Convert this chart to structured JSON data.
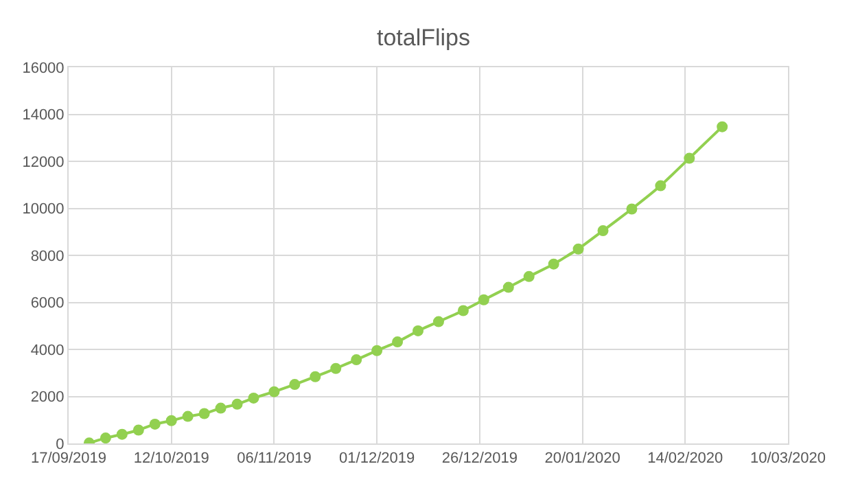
{
  "chart_data": {
    "type": "line",
    "title": "totalFlips",
    "x": [
      "2019-09-22",
      "2019-09-26",
      "2019-09-30",
      "2019-10-04",
      "2019-10-08",
      "2019-10-12",
      "2019-10-16",
      "2019-10-20",
      "2019-10-24",
      "2019-10-28",
      "2019-11-01",
      "2019-11-06",
      "2019-11-11",
      "2019-11-16",
      "2019-11-21",
      "2019-11-26",
      "2019-12-01",
      "2019-12-06",
      "2019-12-11",
      "2019-12-16",
      "2019-12-22",
      "2019-12-27",
      "2020-01-02",
      "2020-01-07",
      "2020-01-13",
      "2020-01-19",
      "2020-01-25",
      "2020-02-01",
      "2020-02-08",
      "2020-02-15",
      "2020-02-23"
    ],
    "series": [
      {
        "color": "#92d050",
        "values": [
          20,
          230,
          390,
          570,
          820,
          970,
          1150,
          1270,
          1500,
          1670,
          1930,
          2200,
          2510,
          2840,
          3190,
          3560,
          3950,
          4320,
          4790,
          5180,
          5650,
          6110,
          6640,
          7100,
          7630,
          8270,
          9050,
          9970,
          10960,
          12130,
          13470
        ]
      }
    ],
    "xlim": [
      "2019-09-17",
      "2020-03-10"
    ],
    "xticks": [
      {
        "value": "2019-09-17",
        "label": "17/09/2019"
      },
      {
        "value": "2019-10-12",
        "label": "12/10/2019"
      },
      {
        "value": "2019-11-06",
        "label": "06/11/2019"
      },
      {
        "value": "2019-12-01",
        "label": "01/12/2019"
      },
      {
        "value": "2019-12-26",
        "label": "26/12/2019"
      },
      {
        "value": "2020-01-20",
        "label": "20/01/2020"
      },
      {
        "value": "2020-02-14",
        "label": "14/02/2020"
      },
      {
        "value": "2020-03-10",
        "label": "10/03/2020"
      }
    ],
    "ylim": [
      0,
      16000
    ],
    "yticks": [
      0,
      2000,
      4000,
      6000,
      8000,
      10000,
      12000,
      14000,
      16000
    ],
    "grid": true,
    "marker": "circle",
    "line_style": "solid"
  }
}
